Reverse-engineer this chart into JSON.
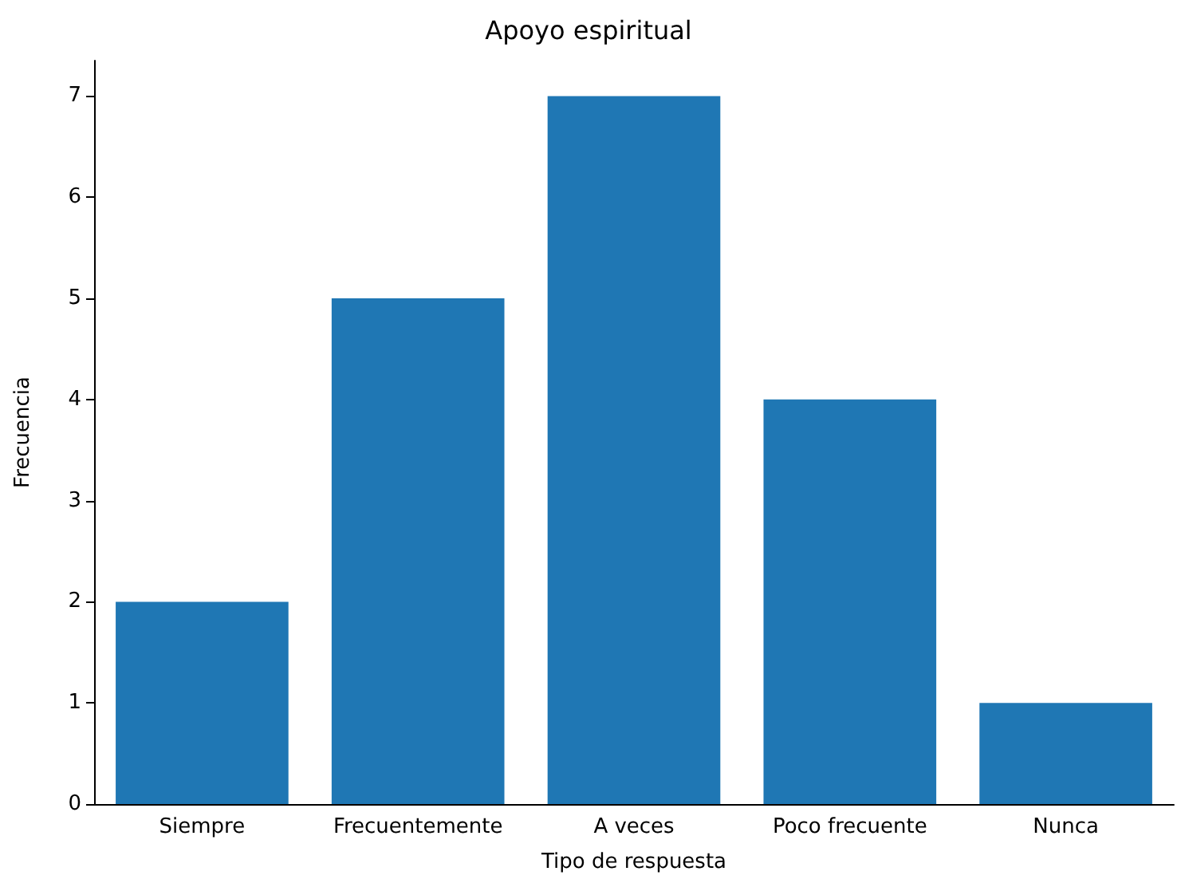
{
  "chart_data": {
    "type": "bar",
    "title": "Apoyo espiritual",
    "xlabel": "Tipo de respuesta",
    "ylabel": "Frecuencia",
    "categories": [
      "Siempre",
      "Frecuentemente",
      "A veces",
      "Poco frecuente",
      "Nunca"
    ],
    "values": [
      2,
      5,
      7,
      4,
      1
    ],
    "color": "#1f77b4",
    "ylim": [
      0,
      7.35
    ],
    "yticks": [
      0,
      1,
      2,
      3,
      4,
      5,
      6,
      7
    ],
    "grid": false
  }
}
